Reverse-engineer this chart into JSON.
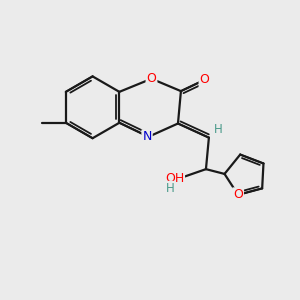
{
  "background_color": "#ebebeb",
  "bond_color": "#1a1a1a",
  "atom_colors": {
    "O": "#ff0000",
    "N": "#0000cc",
    "C": "#1a1a1a",
    "H": "#4a9a8a"
  },
  "figsize": [
    3.0,
    3.0
  ],
  "dpi": 100
}
